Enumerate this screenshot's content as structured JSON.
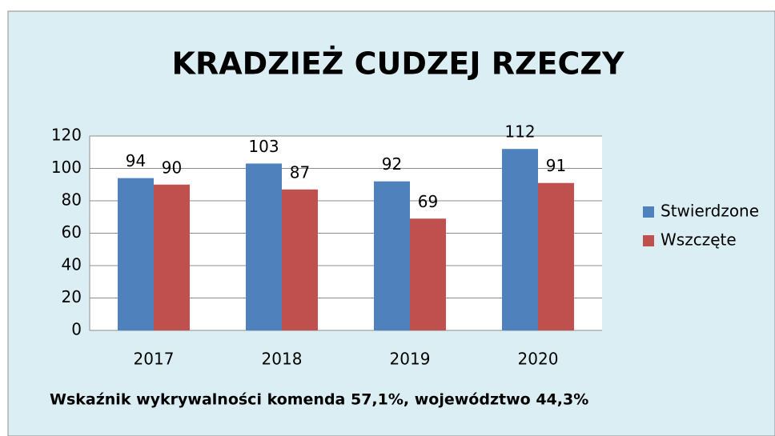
{
  "chart_data": {
    "type": "bar",
    "title": "KRADZIEŻ CUDZEJ RZECZY",
    "categories": [
      "2017",
      "2018",
      "2019",
      "2020"
    ],
    "series": [
      {
        "name": "Stwierdzone",
        "color": "#4f81bd",
        "values": [
          94,
          103,
          92,
          112
        ]
      },
      {
        "name": "Wszczęte",
        "color": "#c0504d",
        "values": [
          90,
          87,
          69,
          91
        ]
      }
    ],
    "ylim": [
      0,
      120
    ],
    "yticks": [
      0,
      20,
      40,
      60,
      80,
      100,
      120
    ],
    "grid": true,
    "legend": "right",
    "annotation": "Wskaźnik wykrywalności komenda 57,1%, województwo 44,3%"
  }
}
